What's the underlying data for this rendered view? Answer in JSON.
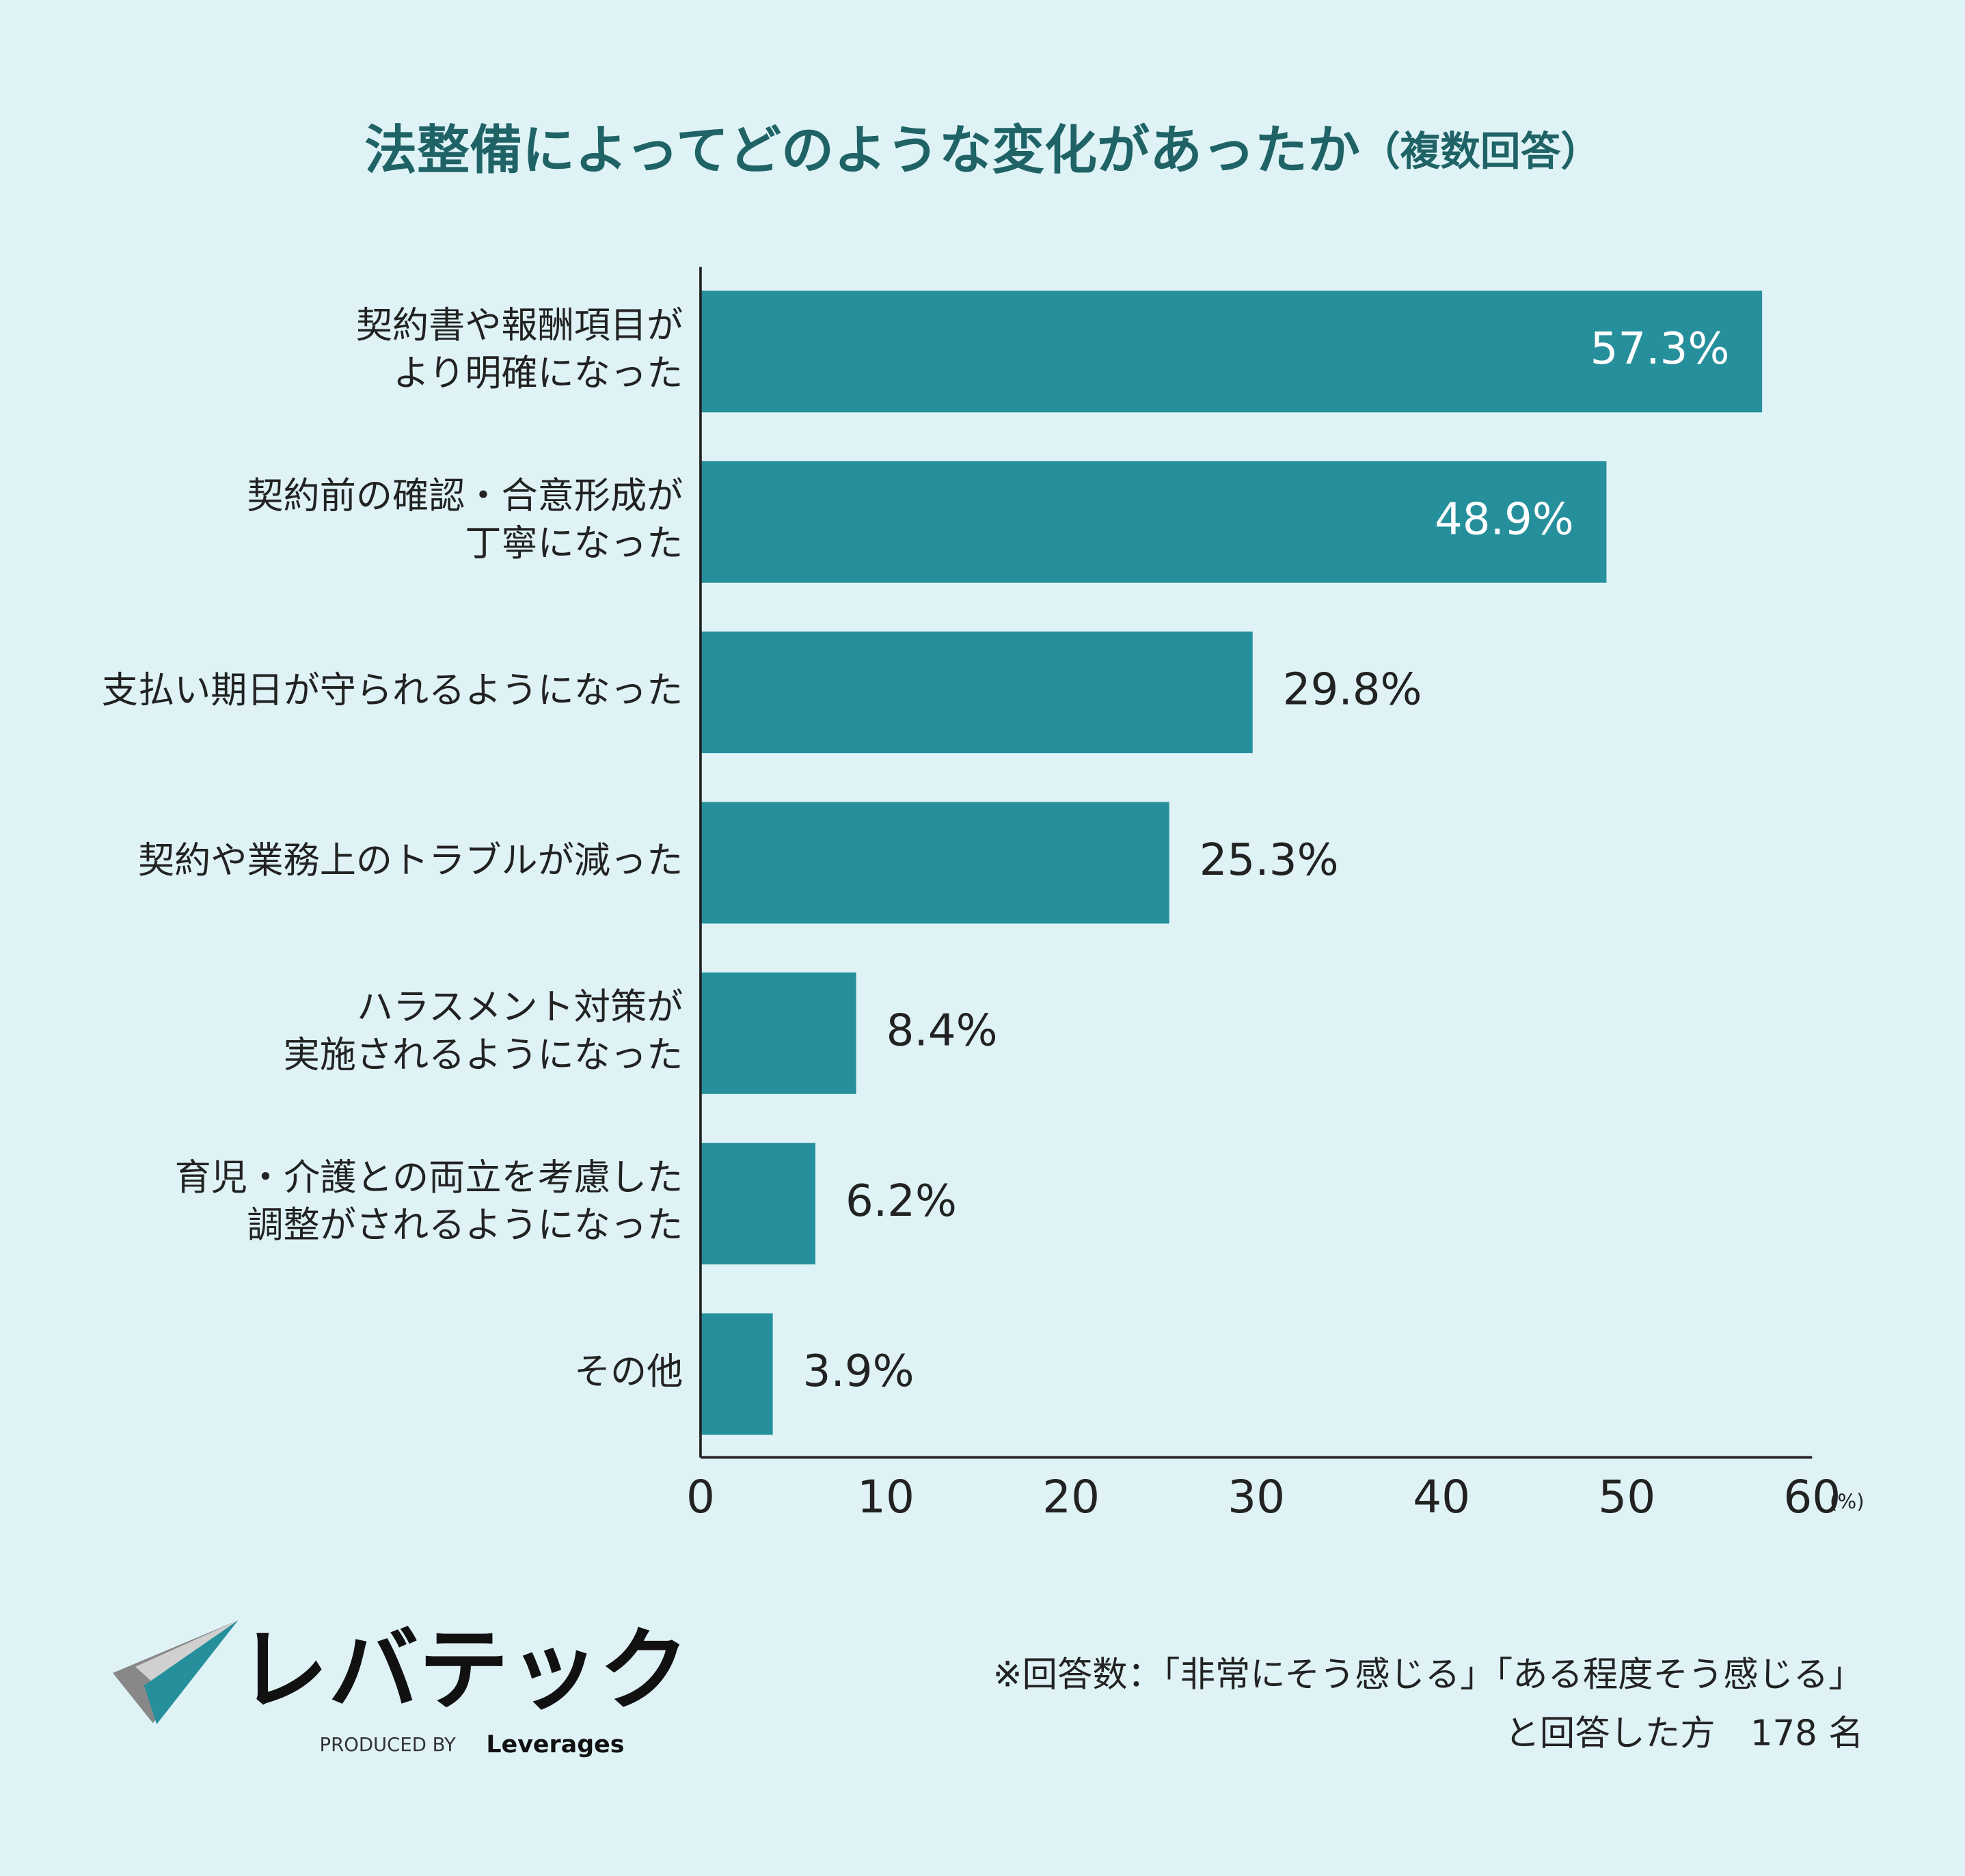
{
  "chart_data": {
    "type": "barh",
    "title": "法整備によってどのような変化があったか",
    "title_note": "（複数回答）",
    "categories": [
      [
        "契約書や報酬項目が",
        "より明確になった"
      ],
      [
        "契約前の確認・合意形成が",
        "丁寧になった"
      ],
      [
        "支払い期日が守られるようになった"
      ],
      [
        "契約や業務上のトラブルが減った"
      ],
      [
        "ハラスメント対策が",
        "実施されるようになった"
      ],
      [
        "育児・介護との両立を考慮した",
        "調整がされるようになった"
      ],
      [
        "その他"
      ]
    ],
    "values": [
      57.3,
      48.9,
      29.8,
      25.3,
      8.4,
      6.2,
      3.9
    ],
    "value_labels": [
      "57.3%",
      "48.9%",
      "29.8%",
      "25.3%",
      "8.4%",
      "6.2%",
      "3.9%"
    ],
    "color": "#268f9c",
    "xlim": [
      0,
      60
    ],
    "xticks": [
      0,
      10,
      20,
      30,
      40,
      50,
      60
    ],
    "x_unit": "(%)"
  },
  "footnote": [
    "※回答数：「非常にそう感じる」「ある程度そう感じる」",
    "と回答した方　178 名"
  ],
  "logo": {
    "name": "レバテック",
    "produced_by": "PRODUCED BY",
    "company": "Leverages"
  }
}
